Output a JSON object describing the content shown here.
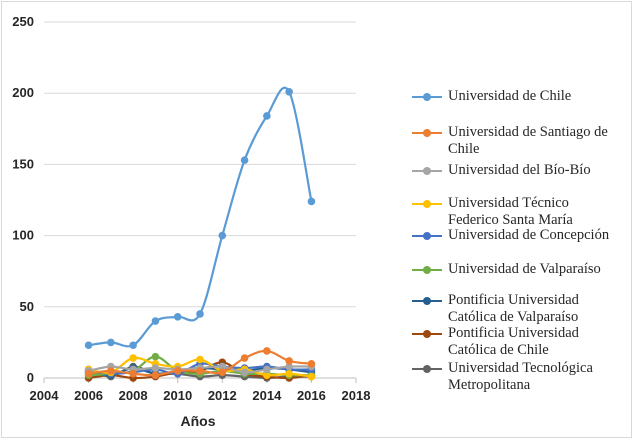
{
  "chart_data": {
    "type": "line",
    "title": "",
    "xlabel": "Años",
    "ylabel": "",
    "xlim": [
      2004,
      2018
    ],
    "ylim": [
      0,
      250
    ],
    "x_ticks": [
      "2004",
      "2006",
      "2008",
      "2010",
      "2012",
      "2014",
      "2016",
      "2018"
    ],
    "y_ticks": [
      "0",
      "50",
      "100",
      "150",
      "200",
      "250"
    ],
    "grid": "horizontal",
    "legend_position": "right",
    "x": [
      2006,
      2007,
      2008,
      2009,
      2010,
      2011,
      2012,
      2013,
      2014,
      2015,
      2016
    ],
    "series": [
      {
        "name": "Universidad de Chile",
        "color": "#5b9bd5",
        "values": [
          23,
          25,
          23,
          40,
          43,
          45,
          100,
          153,
          184,
          201,
          124
        ]
      },
      {
        "name": "Universidad de Santiago de Chile",
        "color": "#ed7d31",
        "values": [
          3,
          5,
          3,
          2,
          5,
          5,
          4,
          14,
          19,
          12,
          10
        ]
      },
      {
        "name": "Universidad del Bío-Bío",
        "color": "#a5a5a5",
        "values": [
          5,
          8,
          6,
          7,
          6,
          7,
          8,
          4,
          6,
          8,
          8
        ]
      },
      {
        "name": "Universidad Técnico Federico Santa María",
        "color": "#ffc000",
        "values": [
          6,
          4,
          14,
          10,
          8,
          13,
          5,
          6,
          2,
          3,
          1
        ]
      },
      {
        "name": "Universidad de Concepción",
        "color": "#4472c4",
        "values": [
          5,
          3,
          4,
          6,
          3,
          10,
          8,
          7,
          8,
          6,
          6
        ]
      },
      {
        "name": "Universidad de Valparaíso",
        "color": "#70ad47",
        "values": [
          2,
          3,
          5,
          15,
          5,
          3,
          5,
          3,
          3,
          2,
          2
        ]
      },
      {
        "name": "Pontificia Universidad Católica de Valparaíso",
        "color": "#255e91",
        "values": [
          4,
          2,
          7,
          3,
          5,
          7,
          6,
          5,
          7,
          6,
          4
        ]
      },
      {
        "name": "Pontificia Universidad Católica de Chile",
        "color": "#9e480e",
        "values": [
          0,
          2,
          0,
          1,
          4,
          5,
          11,
          3,
          1,
          0,
          2
        ]
      },
      {
        "name": "Universidad Tecnológica Metropolitana",
        "color": "#636363",
        "values": [
          6,
          1,
          8,
          3,
          3,
          1,
          2,
          1,
          0,
          1,
          1
        ]
      }
    ]
  },
  "legend": [
    {
      "line1": "Universidad de Chile",
      "line2": ""
    },
    {
      "line1": "Universidad de Santiago de",
      "line2": "Chile"
    },
    {
      "line1": "Universidad del Bío-Bío",
      "line2": ""
    },
    {
      "line1": "Universidad Técnico",
      "line2": "Federico Santa María"
    },
    {
      "line1": "Universidad de Concepción",
      "line2": ""
    },
    {
      "line1": "Universidad de Valparaíso",
      "line2": ""
    },
    {
      "line1": "Pontificia Universidad",
      "line2": "Católica de Valparaíso"
    },
    {
      "line1": "Pontificia Universidad",
      "line2": "Católica de Chile"
    },
    {
      "line1": "Universidad Tecnológica",
      "line2": "Metropolitana"
    }
  ]
}
